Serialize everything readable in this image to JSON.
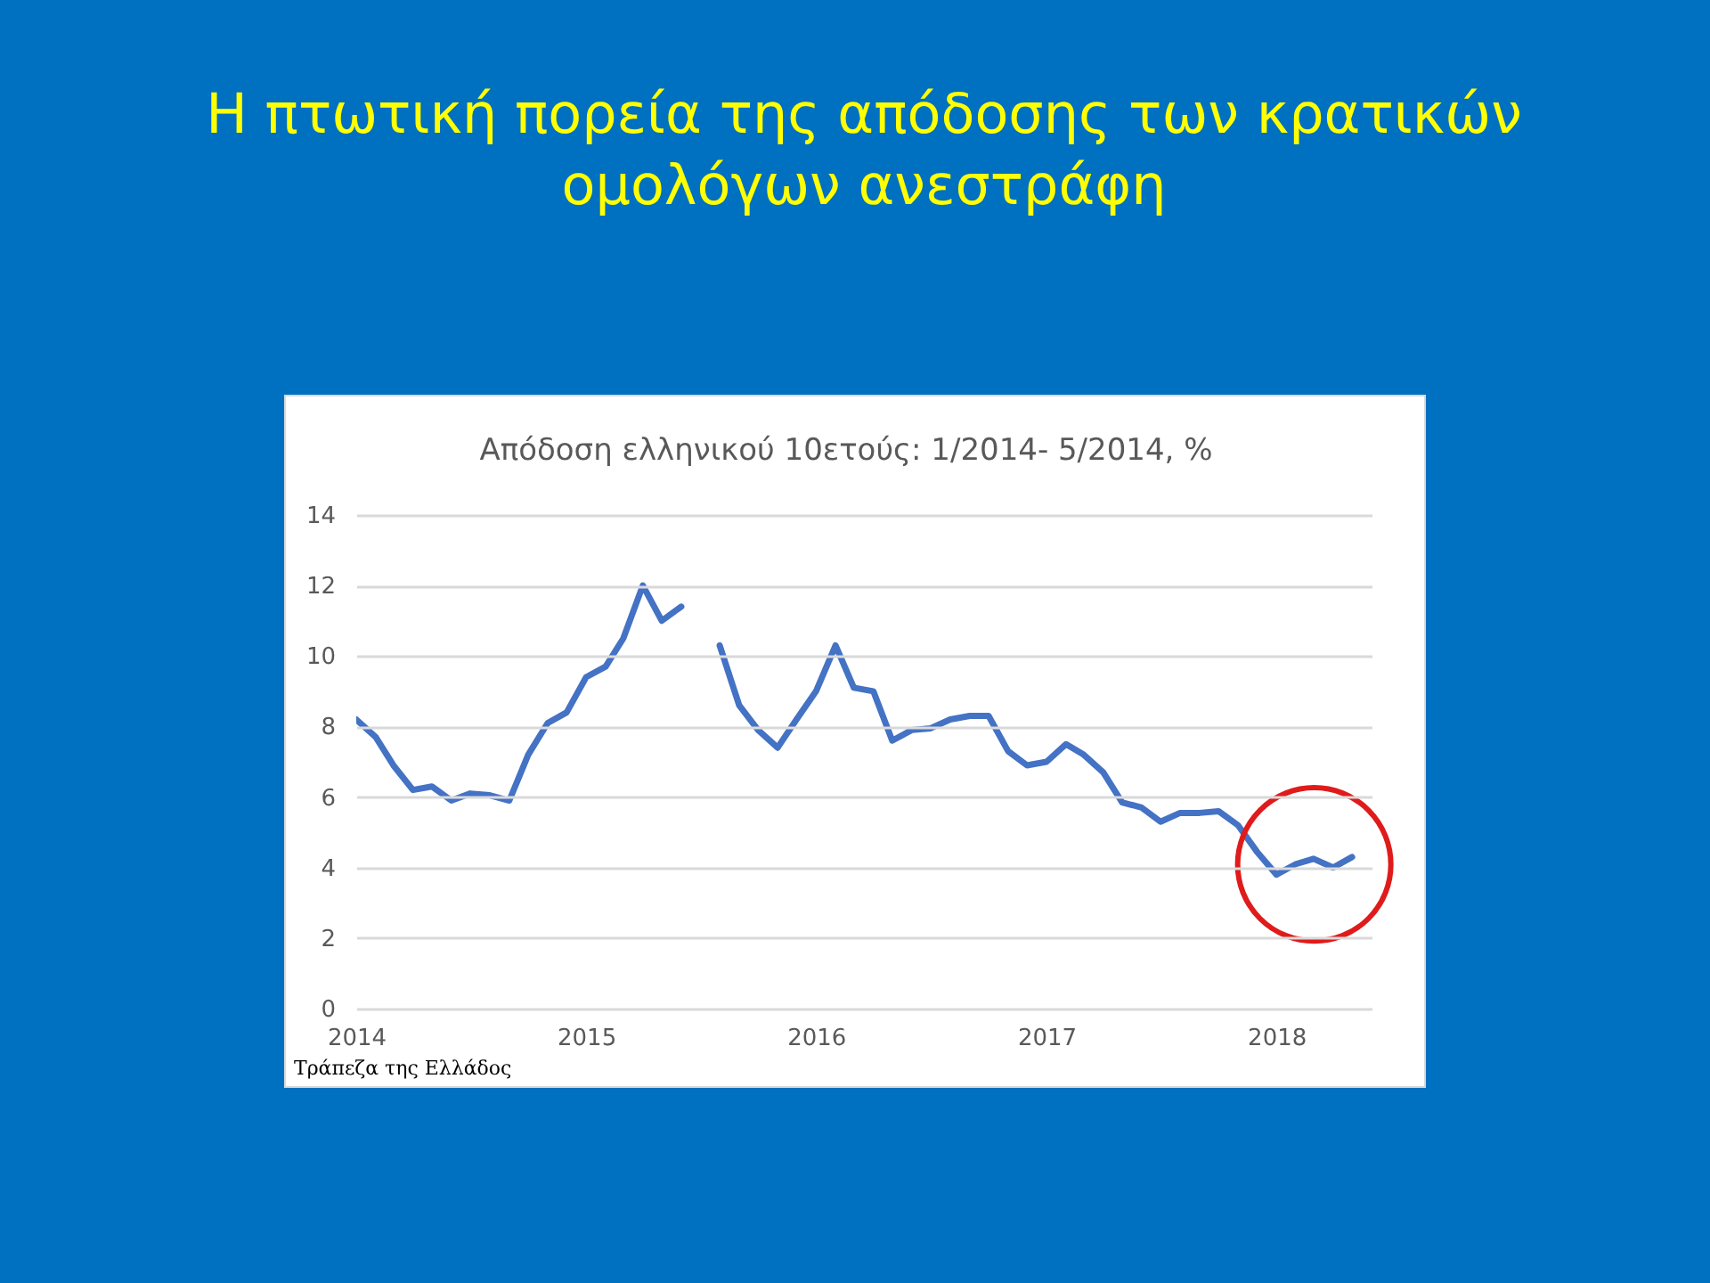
{
  "chart_data": {
    "type": "line",
    "title": "Η πτωτική πορεία της απόδοσης των κρατικών ομολόγων ανεστράφη",
    "subtitle": "Απόδοση ελληνικού 10ετούς: 1/2014- 5/2014, %",
    "x": [
      "2014-01",
      "2014-02",
      "2014-03",
      "2014-04",
      "2014-05",
      "2014-06",
      "2014-07",
      "2014-08",
      "2014-09",
      "2014-10",
      "2014-11",
      "2014-12",
      "2015-01",
      "2015-02",
      "2015-03",
      "2015-04",
      "2015-05",
      "2015-06",
      "2015-07",
      "2015-08",
      "2015-09",
      "2015-10",
      "2015-11",
      "2015-12",
      "2016-01",
      "2016-02",
      "2016-03",
      "2016-04",
      "2016-05",
      "2016-06",
      "2016-07",
      "2016-08",
      "2016-09",
      "2016-10",
      "2016-11",
      "2016-12",
      "2017-01",
      "2017-02",
      "2017-03",
      "2017-04",
      "2017-05",
      "2017-06",
      "2017-07",
      "2017-08",
      "2017-09",
      "2017-10",
      "2017-11",
      "2017-12",
      "2018-01",
      "2018-02",
      "2018-03",
      "2018-04",
      "2018-05"
    ],
    "series": [
      {
        "color": "#4472c4",
        "values": [
          8.2,
          7.7,
          6.9,
          6.2,
          6.3,
          5.9,
          6.1,
          6.05,
          5.9,
          7.2,
          8.1,
          8.4,
          9.4,
          9.7,
          10.5,
          12.0,
          11.0,
          11.4,
          null,
          10.3,
          8.6,
          7.9,
          7.4,
          8.2,
          9.0,
          10.3,
          9.1,
          9.0,
          7.6,
          7.9,
          7.95,
          8.2,
          8.3,
          8.3,
          7.3,
          6.9,
          7.0,
          7.5,
          7.2,
          6.7,
          5.85,
          5.7,
          5.3,
          5.55,
          5.55,
          5.6,
          5.2,
          4.45,
          3.8,
          4.1,
          4.25,
          4.0,
          4.3
        ]
      }
    ],
    "xlim": [
      "2014-01",
      "2018-06"
    ],
    "xticks": [
      "2014",
      "2015",
      "2016",
      "2017",
      "2018"
    ],
    "ylim": [
      0,
      14
    ],
    "yticks": [
      0,
      2,
      4,
      6,
      8,
      10,
      12,
      14
    ],
    "grid": "y",
    "marker": "none",
    "line_style": "solid",
    "annotations": [
      "Τράπεζα της Ελλάδος"
    ]
  }
}
